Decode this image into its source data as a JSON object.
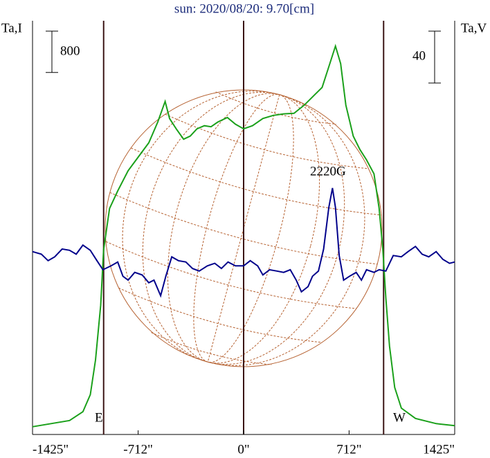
{
  "chart_data": {
    "type": "line",
    "title": "sun: 2020/08/20: 9.70[cm]",
    "y_label": "Ta,I",
    "y2_label": "Ta,V",
    "xlim": [
      -1425,
      1425
    ],
    "xticks": [
      {
        "value": -1425,
        "label": "-1425\""
      },
      {
        "value": -712,
        "label": "-712\""
      },
      {
        "value": 0,
        "label": "0\""
      },
      {
        "value": 712,
        "label": "712\""
      },
      {
        "value": 1425,
        "label": "1425\""
      }
    ],
    "ylim": [
      0,
      8000
    ],
    "y2lim": [
      -130,
      189
    ],
    "scale_bar_y": 800,
    "scale_bar_y2": 40,
    "vlines": [
      -945,
      0,
      945
    ],
    "limb_labels": [
      "E",
      "W"
    ],
    "annotation": "2220G",
    "series": [
      {
        "color": "#1aa01a",
        "axis": "y",
        "x": [
          -1425,
          -1175,
          -1085,
          -1035,
          -1000,
          -965,
          -945,
          -905,
          -850,
          -780,
          -710,
          -640,
          -580,
          -530,
          -500,
          -455,
          -405,
          -360,
          -315,
          -265,
          -220,
          -175,
          -110,
          -55,
          0,
          60,
          130,
          200,
          270,
          340,
          410,
          480,
          530,
          575,
          620,
          655,
          690,
          740,
          785,
          830,
          880,
          915,
          940,
          960,
          985,
          1020,
          1065,
          1160,
          1300,
          1425
        ],
        "values": [
          150,
          270,
          440,
          770,
          1440,
          2500,
          3570,
          4370,
          4710,
          5100,
          5370,
          5640,
          6040,
          6440,
          6110,
          5910,
          5710,
          5770,
          5910,
          5970,
          5950,
          6040,
          6130,
          6000,
          5910,
          5970,
          6110,
          6170,
          6200,
          6210,
          6370,
          6570,
          6710,
          7110,
          7510,
          7170,
          6370,
          5770,
          5510,
          5310,
          5040,
          4370,
          3570,
          2640,
          1710,
          910,
          510,
          310,
          210,
          170
        ]
      },
      {
        "color": "#00008b",
        "axis": "y2",
        "x": [
          -1425,
          -1365,
          -1320,
          -1275,
          -1225,
          -1175,
          -1130,
          -1085,
          -1035,
          -990,
          -950,
          -895,
          -850,
          -815,
          -780,
          -735,
          -685,
          -640,
          -605,
          -560,
          -525,
          -485,
          -440,
          -390,
          -345,
          -300,
          -245,
          -195,
          -150,
          -105,
          -55,
          0,
          45,
          95,
          130,
          175,
          225,
          270,
          315,
          355,
          390,
          435,
          465,
          505,
          540,
          575,
          600,
          620,
          645,
          675,
          715,
          760,
          795,
          830,
          880,
          915,
          960,
          1010,
          1065,
          1110,
          1160,
          1205,
          1250,
          1300,
          1345,
          1390,
          1425
        ],
        "values": [
          11,
          9,
          4,
          7,
          13,
          12,
          9,
          16,
          12,
          4,
          -3,
          0,
          3,
          -8,
          -11,
          -5,
          -7,
          -13,
          -11,
          -23,
          -8,
          7,
          4,
          3,
          -2,
          -4,
          0,
          2,
          -2,
          3,
          0,
          0,
          4,
          0,
          -7,
          -3,
          -4,
          -5,
          -3,
          -11,
          -20,
          -16,
          -8,
          -4,
          13,
          45,
          60,
          45,
          8,
          -11,
          -8,
          -5,
          -11,
          -3,
          -5,
          -3,
          -4,
          8,
          7,
          11,
          15,
          9,
          7,
          11,
          5,
          2,
          3
        ]
      }
    ]
  }
}
